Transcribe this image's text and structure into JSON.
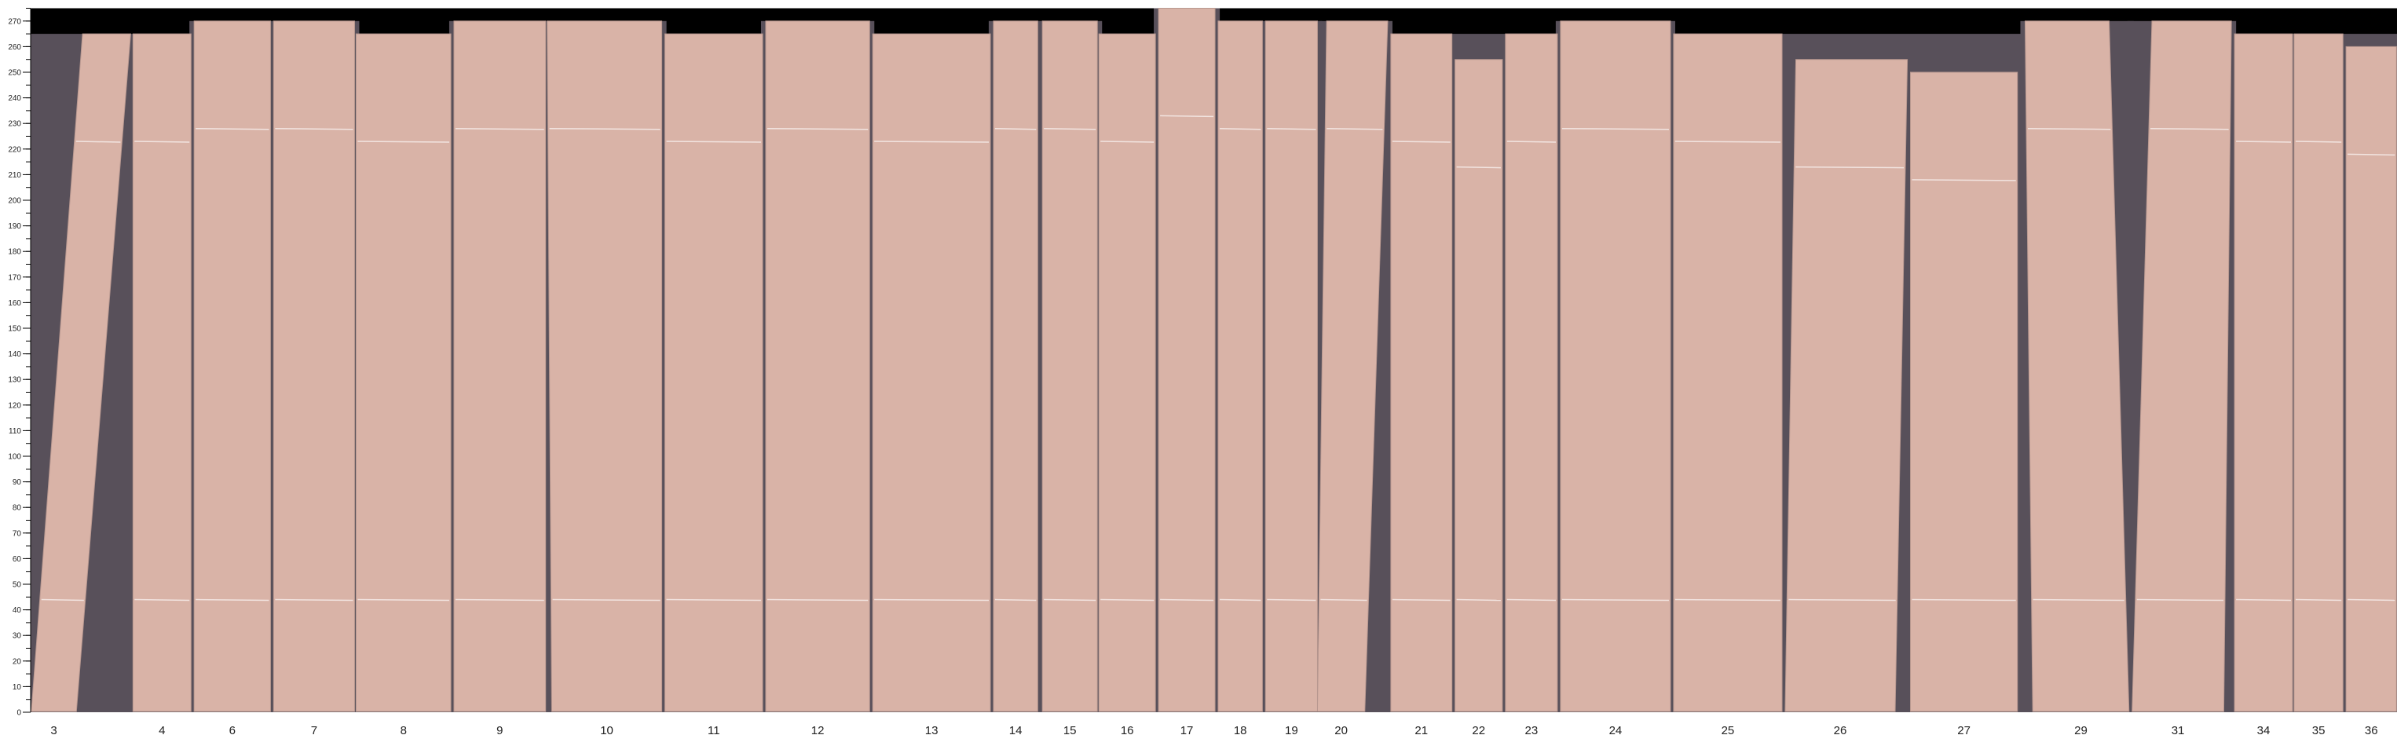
{
  "chart_data": {
    "type": "image-strip",
    "ylim": [
      0,
      275
    ],
    "y_ticks": [
      0,
      10,
      20,
      30,
      40,
      50,
      60,
      70,
      80,
      90,
      100,
      110,
      120,
      130,
      140,
      150,
      160,
      170,
      180,
      190,
      200,
      210,
      220,
      230,
      240,
      250,
      260,
      270
    ],
    "y_minor_step": 5,
    "boards": [
      {
        "label": "3",
        "top": 265
      },
      {
        "label": "4",
        "top": 265
      },
      {
        "label": "6",
        "top": 270
      },
      {
        "label": "7",
        "top": 270
      },
      {
        "label": "8",
        "top": 265
      },
      {
        "label": "9",
        "top": 270
      },
      {
        "label": "10",
        "top": 270
      },
      {
        "label": "11",
        "top": 265
      },
      {
        "label": "12",
        "top": 270
      },
      {
        "label": "13",
        "top": 265
      },
      {
        "label": "14",
        "top": 270
      },
      {
        "label": "15",
        "top": 270
      },
      {
        "label": "16",
        "top": 265
      },
      {
        "label": "17",
        "top": 275
      },
      {
        "label": "18",
        "top": 270
      },
      {
        "label": "19",
        "top": 270
      },
      {
        "label": "20",
        "top": 270
      },
      {
        "label": "21",
        "top": 265
      },
      {
        "label": "22",
        "top": 255
      },
      {
        "label": "23",
        "top": 265
      },
      {
        "label": "24",
        "top": 270
      },
      {
        "label": "25",
        "top": 265
      },
      {
        "label": "26",
        "top": 255
      },
      {
        "label": "27",
        "top": 250
      },
      {
        "label": "29",
        "top": 270
      },
      {
        "label": "31",
        "top": 270
      },
      {
        "label": "34",
        "top": 265
      },
      {
        "label": "35",
        "top": 265
      },
      {
        "label": "36",
        "top": 260
      }
    ],
    "colors": {
      "board": "#d9b3a7",
      "gap": "#58505a",
      "top_band": "#000000",
      "cut_line": "#f2e4e0"
    }
  }
}
